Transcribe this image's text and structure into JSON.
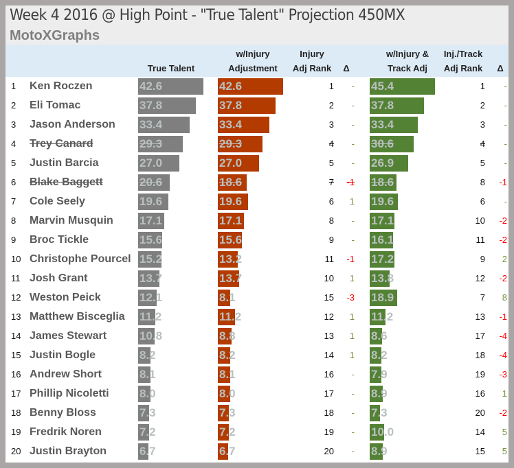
{
  "title": "Week 4 2016 @ High Point - \"True Talent\" Projection 450MX",
  "brand": "MotoXGraphs",
  "colors": {
    "true_talent": "#7f7f7f",
    "injury": "#b33b00",
    "track": "#548235",
    "positive": "#76923c",
    "negative": "#ff0000",
    "neutral": "#76923c"
  },
  "chart_data": {
    "type": "table",
    "columns": {
      "true_talent": "True Talent",
      "injury_adj_1": "w/Injury",
      "injury_adj_2": "Adjustment",
      "injury_rank_1": "Injury",
      "injury_rank_2": "Adj Rank",
      "delta": "Δ",
      "track_adj_1": "w/Injury &",
      "track_adj_2": "Track Adj",
      "track_rank_1": "Inj./Track",
      "track_rank_2": "Adj Rank",
      "delta2": "Δ"
    },
    "rows": [
      {
        "n": "1",
        "name": "Ken Roczen",
        "tt": "42.6",
        "inj": "42.6",
        "ir": "1",
        "d1": "-",
        "tr": "45.4",
        "trr": "1",
        "d2": "-"
      },
      {
        "n": "2",
        "name": "Eli Tomac",
        "tt": "37.8",
        "inj": "37.8",
        "ir": "2",
        "d1": "-",
        "tr": "37.8",
        "trr": "2",
        "d2": "-"
      },
      {
        "n": "3",
        "name": "Jason Anderson",
        "tt": "33.4",
        "inj": "33.4",
        "ir": "3",
        "d1": "-",
        "tr": "33.4",
        "trr": "3",
        "d2": "-"
      },
      {
        "n": "4",
        "name": "Trey Canard",
        "tt": "29.3",
        "inj": "29.3",
        "ir": "4",
        "d1": "-",
        "tr": "30.6",
        "trr": "4",
        "d2": "-",
        "struck": true
      },
      {
        "n": "5",
        "name": "Justin Barcia",
        "tt": "27.0",
        "inj": "27.0",
        "ir": "5",
        "d1": "-",
        "tr": "26.9",
        "trr": "5",
        "d2": "-"
      },
      {
        "n": "6",
        "name": "Blake Baggett",
        "tt": "20.6",
        "inj": "18.6",
        "ir": "7",
        "d1": "-1",
        "tr": "18.6",
        "trr": "8",
        "d2": "-1",
        "struck": true
      },
      {
        "n": "7",
        "name": "Cole Seely",
        "tt": "19.6",
        "inj": "19.6",
        "ir": "6",
        "d1": "1",
        "tr": "19.6",
        "trr": "6",
        "d2": "-"
      },
      {
        "n": "8",
        "name": "Marvin Musquin",
        "tt": "17.1",
        "inj": "17.1",
        "ir": "8",
        "d1": "-",
        "tr": "17.1",
        "trr": "10",
        "d2": "-2"
      },
      {
        "n": "9",
        "name": "Broc Tickle",
        "tt": "15.6",
        "inj": "15.6",
        "ir": "9",
        "d1": "-",
        "tr": "16.1",
        "trr": "11",
        "d2": "-2"
      },
      {
        "n": "10",
        "name": "Christophe Pourcel",
        "tt": "15.2",
        "inj": "13.2",
        "ir": "11",
        "d1": "-1",
        "tr": "17.2",
        "trr": "9",
        "d2": "2"
      },
      {
        "n": "11",
        "name": "Josh Grant",
        "tt": "13.7",
        "inj": "13.7",
        "ir": "10",
        "d1": "1",
        "tr": "13.8",
        "trr": "12",
        "d2": "-2"
      },
      {
        "n": "12",
        "name": "Weston Peick",
        "tt": "12.1",
        "inj": "8.1",
        "ir": "15",
        "d1": "-3",
        "tr": "18.9",
        "trr": "7",
        "d2": "8"
      },
      {
        "n": "13",
        "name": "Matthew Bisceglia",
        "tt": "11.2",
        "inj": "11.2",
        "ir": "12",
        "d1": "1",
        "tr": "11.2",
        "trr": "13",
        "d2": "-1"
      },
      {
        "n": "14",
        "name": "James Stewart",
        "tt": "10.8",
        "inj": "8.8",
        "ir": "13",
        "d1": "1",
        "tr": "8.6",
        "trr": "17",
        "d2": "-4"
      },
      {
        "n": "15",
        "name": "Justin Bogle",
        "tt": "8.2",
        "inj": "8.2",
        "ir": "14",
        "d1": "1",
        "tr": "8.2",
        "trr": "18",
        "d2": "-4"
      },
      {
        "n": "16",
        "name": "Andrew Short",
        "tt": "8.1",
        "inj": "8.1",
        "ir": "16",
        "d1": "-",
        "tr": "7.9",
        "trr": "19",
        "d2": "-3"
      },
      {
        "n": "17",
        "name": "Phillip Nicoletti",
        "tt": "8.0",
        "inj": "8.0",
        "ir": "17",
        "d1": "-",
        "tr": "8.9",
        "trr": "16",
        "d2": "1"
      },
      {
        "n": "18",
        "name": "Benny Bloss",
        "tt": "7.3",
        "inj": "7.3",
        "ir": "18",
        "d1": "-",
        "tr": "7.3",
        "trr": "20",
        "d2": "-2"
      },
      {
        "n": "19",
        "name": "Fredrik Noren",
        "tt": "7.2",
        "inj": "7.2",
        "ir": "19",
        "d1": "-",
        "tr": "10.0",
        "trr": "14",
        "d2": "5"
      },
      {
        "n": "20",
        "name": "Justin Brayton",
        "tt": "6.7",
        "inj": "6.7",
        "ir": "20",
        "d1": "-",
        "tr": "8.9",
        "trr": "15",
        "d2": "5"
      }
    ]
  }
}
